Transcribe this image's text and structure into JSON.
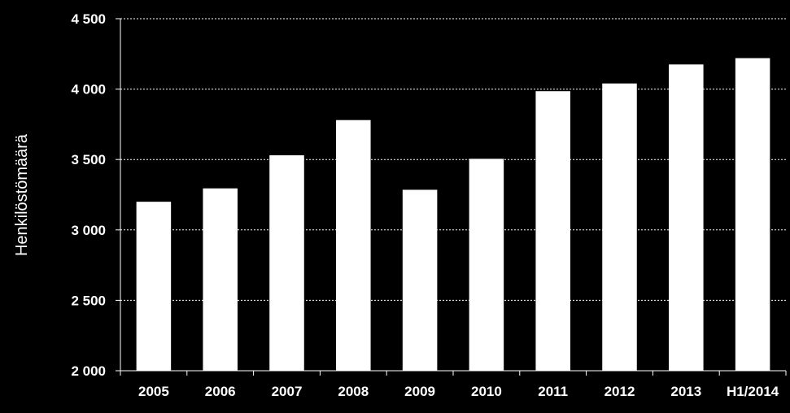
{
  "chart_data": {
    "type": "bar",
    "categories": [
      "2005",
      "2006",
      "2007",
      "2008",
      "2009",
      "2010",
      "2011",
      "2012",
      "2013",
      "H1/2014"
    ],
    "values": [
      3200,
      3295,
      3530,
      3780,
      3285,
      3505,
      3985,
      4040,
      4175,
      4220
    ],
    "ylabel": "Henkilöstömäärä",
    "ylim": [
      2000,
      4500
    ],
    "yticks": [
      2000,
      2500,
      3000,
      3500,
      4000,
      4500
    ],
    "ytick_labels": [
      "2 000",
      "2 500",
      "3 000",
      "3 500",
      "4 000",
      "4 500"
    ],
    "grid": true,
    "bar_color": "#ffffff",
    "background": "#000000",
    "gridline_color": "#ffffff"
  }
}
